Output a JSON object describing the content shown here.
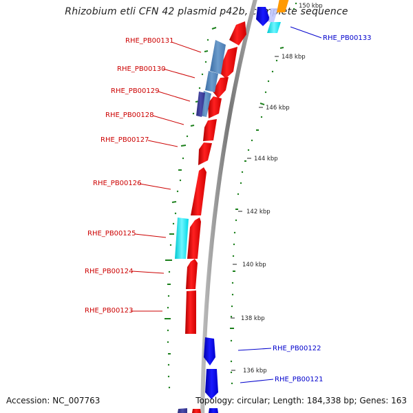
{
  "title": "Rhizobium etli CFN 42 plasmid p42b, complete sequence",
  "footer": {
    "accession": "Accession: NC_007763",
    "summary": "Topology: circular; Length: 184,338 bp; Genes: 163"
  },
  "colors": {
    "forward_gene": "#ff0000",
    "reverse_gene": "#0000ff",
    "label_left": "#cc0000",
    "label_right": "#0000cc",
    "backbone": "#888888",
    "gc_tick": "#1a7f1a"
  },
  "scale_labels": [
    "150 kbp",
    "148 kbp",
    "146 kbp",
    "144 kbp",
    "142 kbp",
    "140 kbp",
    "138 kbp",
    "136 kbp"
  ],
  "left_labels": [
    "RHE_PB00131",
    "RHE_PB00130",
    "RHE_PB00129",
    "RHE_PB00128",
    "RHE_PB00127",
    "RHE_PB00126",
    "RHE_PB00125",
    "RHE_PB00124",
    "RHE_PB00123"
  ],
  "right_labels": [
    "RHE_PB00133",
    "RHE_PB00122",
    "RHE_PB00121"
  ]
}
